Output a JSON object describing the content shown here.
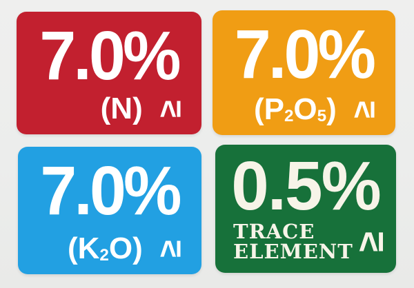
{
  "background_color": "#ECEDEC",
  "cards": [
    {
      "name": "nitrogen",
      "color": "#C2202F",
      "value": "7.0%",
      "label_pre": "(N",
      "label_sub1": "",
      "label_mid": "",
      "label_sub2": "",
      "label_post": ")",
      "symbol": "≥"
    },
    {
      "name": "phosphorus-pentoxide",
      "color": "#F09D14",
      "value": "7.0%",
      "label_pre": "(P",
      "label_sub1": "2",
      "label_mid": "O",
      "label_sub2": "5",
      "label_post": ")",
      "symbol": "≥"
    },
    {
      "name": "potassium-oxide",
      "color": "#22A0E2",
      "value": "7.0%",
      "label_pre": "(K",
      "label_sub1": "2",
      "label_mid": "O",
      "label_sub2": "",
      "label_post": ")",
      "symbol": "≥"
    },
    {
      "name": "trace-element",
      "color": "#17713A",
      "text_color": "#F7F4E8",
      "value": "0.5%",
      "label_line1": "TRACE",
      "label_line2": "ELEMENT",
      "symbol": "≥"
    }
  ]
}
